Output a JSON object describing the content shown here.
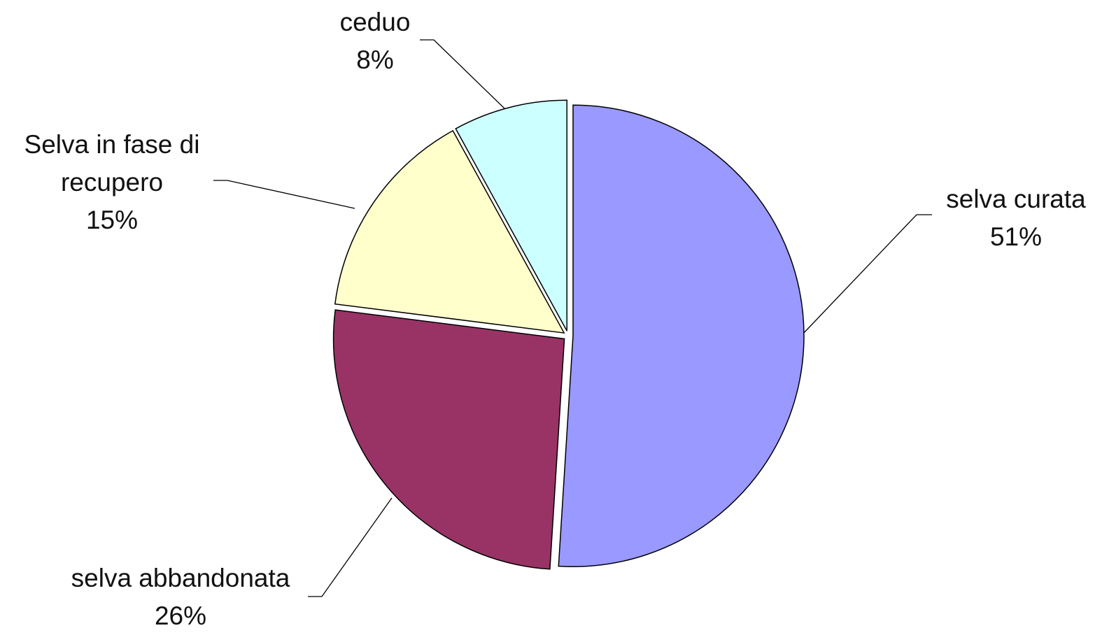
{
  "chart_data": {
    "type": "pie",
    "title": "",
    "unit": "%",
    "slices": [
      {
        "label_lines": [
          "selva curata"
        ],
        "percent_text": "51%",
        "value": 51,
        "color": "#9999ff"
      },
      {
        "label_lines": [
          "selva abbandonata"
        ],
        "percent_text": "26%",
        "value": 26,
        "color": "#993366"
      },
      {
        "label_lines": [
          "Selva in fase di",
          "recupero"
        ],
        "percent_text": "15%",
        "value": 15,
        "color": "#ffffcc"
      },
      {
        "label_lines": [
          "ceduo"
        ],
        "percent_text": "8%",
        "value": 8,
        "color": "#ccffff"
      }
    ],
    "start": "12 o'clock",
    "direction": "clockwise",
    "exploded": true,
    "legend": "none",
    "outline_color": "#000000",
    "leader_line_color": "#000000"
  }
}
